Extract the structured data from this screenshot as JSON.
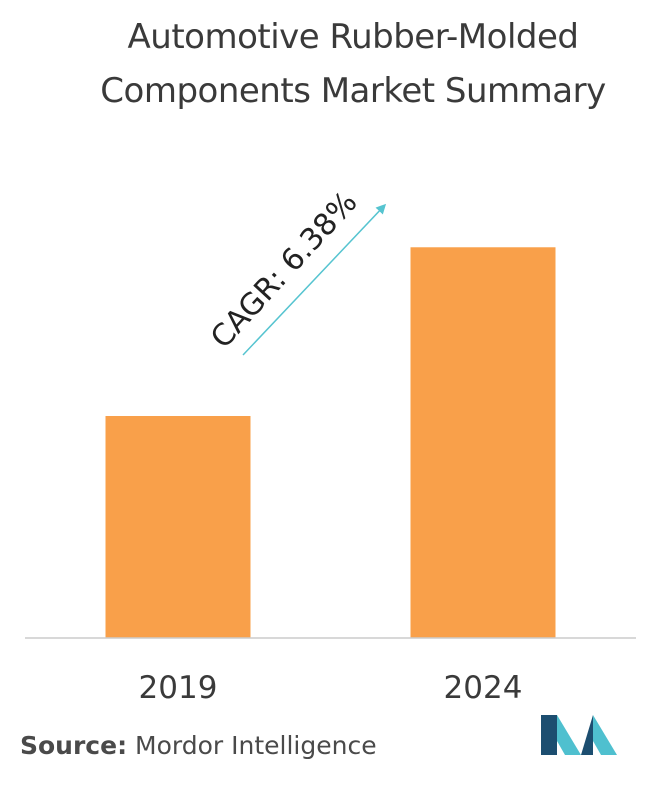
{
  "title": "Automotive Rubber-Molded Components Market Summary",
  "source": {
    "label": "Source:",
    "text": "Mordor Intelligence"
  },
  "annotation": "CAGR: 6.38%",
  "colors": {
    "bar": "#f9a04a",
    "arrow": "#56c4d0",
    "axis": "#cccccc",
    "text": "#3a3a3a",
    "logo_dark": "#1c4e70",
    "logo_light": "#4fc0cf"
  },
  "logo_icon": "mordor-intelligence-logo",
  "chart_data": {
    "type": "bar",
    "title": "Automotive Rubber-Molded Components Market Summary",
    "categories": [
      "2019",
      "2024"
    ],
    "values": [
      0.5,
      0.88
    ],
    "value_scale": "relative bar height, no value axis shown",
    "xlabel": "",
    "ylabel": "",
    "grid": false,
    "legend": "none",
    "annotations": [
      "CAGR: 6.38%"
    ]
  }
}
